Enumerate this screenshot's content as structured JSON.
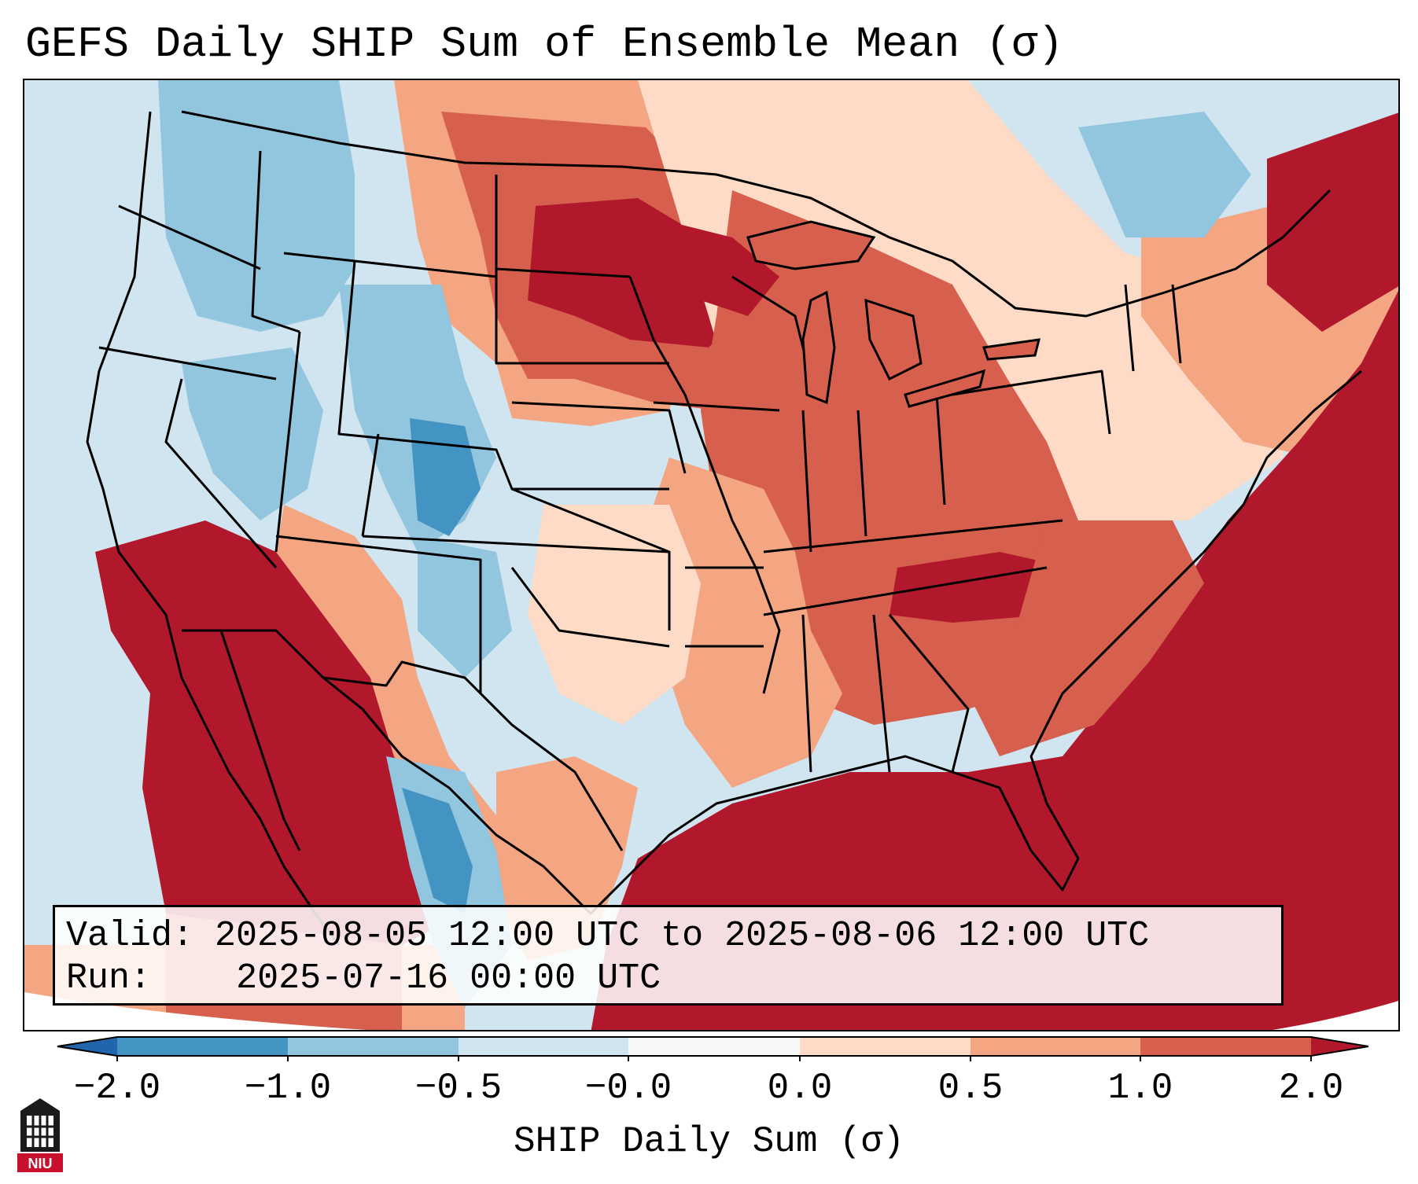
{
  "title": "GEFS Daily SHIP Sum of Ensemble Mean (σ)",
  "info": {
    "valid_label": "Valid:",
    "valid_range": "2025-08-05 12:00 UTC to 2025-08-06 12:00 UTC",
    "run_label": "Run:",
    "run_time": "2025-07-16 00:00 UTC"
  },
  "colorbar": {
    "label": "SHIP Daily Sum (σ)",
    "tick_labels": [
      "−2.0",
      "−1.0",
      "−0.5",
      "−0.0",
      "0.0",
      "0.5",
      "1.0",
      "2.0"
    ],
    "colors": [
      "#2166ac",
      "#4393c3",
      "#92c5de",
      "#d1e5f0",
      "#f7f7f7",
      "#fddbc7",
      "#f4a582",
      "#d6604d",
      "#b2182b"
    ]
  },
  "palette": {
    "deep_red": "#b2182b",
    "red": "#d6604d",
    "salmon": "#f4a582",
    "peach": "#fddbc7",
    "pale_blue": "#d1e5f0",
    "light_blue": "#92c5de",
    "blue": "#4393c3",
    "dark_blue": "#2166ac",
    "land_line": "#000000"
  },
  "logo": {
    "icon": "niu-logo-icon",
    "text": "NIU"
  }
}
